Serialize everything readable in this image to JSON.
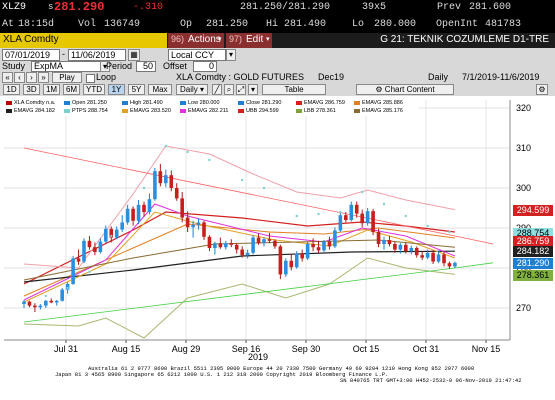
{
  "quote": {
    "ticker": "XLZ9",
    "last_prefix": "s",
    "last": "281.290",
    "change": "-.310",
    "bid_ask": "281.250/281.290",
    "size": "39x5",
    "prev_label": "Prev",
    "prev": "281.600",
    "at_label": "At",
    "time": "18:15d",
    "vol_label": "Vol",
    "volume": "136749",
    "op_label": "Op",
    "open": "281.250",
    "hi_label": "Hi",
    "high": "281.490",
    "lo_label": "Lo",
    "low": "280.000",
    "openint_label": "OpenInt",
    "openint": "481783"
  },
  "toolbar": {
    "security": "XLA Comdty",
    "actions_num": "96)",
    "actions_label": "Actions",
    "edit_num": "97)",
    "edit_label": "Edit",
    "title": "G 21: TEKNIK COZUMLEME D1-TRE"
  },
  "controls": {
    "date_from": "07/01/2019",
    "date_to": "11/06/2019",
    "currency": "Local CCY",
    "study_label": "Study",
    "study_value": "ExpMA",
    "period_label": "Period",
    "period_value": "50",
    "offset_label": "Offset",
    "offset_value": "0",
    "play_label": "Play",
    "loop_label": "Loop",
    "instrument": "XLA Comdty : GOLD FUTURES",
    "contract": "Dec19",
    "frequency": "Daily",
    "range_text": "7/1/2019-11/6/2019"
  },
  "tabs": [
    {
      "label": "1D",
      "selected": false
    },
    {
      "label": "3D",
      "selected": false
    },
    {
      "label": "1M",
      "selected": false
    },
    {
      "label": "6M",
      "selected": false
    },
    {
      "label": "YTD",
      "selected": false
    },
    {
      "label": "1Y",
      "selected": true
    },
    {
      "label": "5Y",
      "selected": false
    },
    {
      "label": "Max",
      "selected": false
    },
    {
      "label": "Daily",
      "selected": false
    }
  ],
  "table_label": "Table",
  "chart_content_label": "Chart Content",
  "legend": [
    {
      "label": "XLA Comdty",
      "value": "n.a.",
      "color": "#c00000"
    },
    {
      "label": "Open",
      "value": "281.250",
      "color": "#1f7fd0"
    },
    {
      "label": "High",
      "value": "281.490",
      "color": "#1f7fd0"
    },
    {
      "label": "Low",
      "value": "280.000",
      "color": "#1f7fd0"
    },
    {
      "label": "Close",
      "value": "281.290",
      "color": "#1f7fd0"
    },
    {
      "label": "EMAVG",
      "value": "286.759",
      "color": "#d42020"
    },
    {
      "label": "EMAVG",
      "value": "285.886",
      "color": "#e08020"
    },
    {
      "label": "EMAVG",
      "value": "284.182",
      "color": "#202020"
    },
    {
      "label": "PTPS",
      "value": "288.754",
      "color": "#7fcfcf"
    },
    {
      "label": "EMAVG",
      "value": "283.520",
      "color": "#e0a020"
    },
    {
      "label": "EMAVG",
      "value": "282.211",
      "color": "#e030e0"
    },
    {
      "label": "UBB",
      "value": "294.599",
      "color": "#d42020"
    },
    {
      "label": "LBB",
      "value": "278.361",
      "color": "#80a040"
    },
    {
      "label": "EMAVG",
      "value": "285.176",
      "color": "#8a6a30"
    }
  ],
  "price_labels": [
    {
      "value": "294.599",
      "bg": "#d42020",
      "fg": "#ffffff"
    },
    {
      "value": "288.754",
      "bg": "#8fdfe0",
      "fg": "#000000"
    },
    {
      "value": "286.759",
      "bg": "#d42020",
      "fg": "#ffffff"
    },
    {
      "value": "284.182",
      "bg": "#202020",
      "fg": "#ffffff"
    },
    {
      "value": "281.290",
      "bg": "#1f7fd0",
      "fg": "#ffffff"
    },
    {
      "value": "278.361",
      "bg": "#80b040",
      "fg": "#000000"
    }
  ],
  "footer": {
    "line1": "Australia 61 2 9777 8600 Brazil 5511 2395 9000 Europe 44 20 7330 7500 Germany 49 69 9204 1210 Hong Kong 852 2977 6000",
    "line2": "Japan 81 3 4565 8900          Singapore 65 6212 1000          U.S. 1 212 318 2000          Copyright 2019 Bloomberg Finance L.P.",
    "line3": "SN 840765 TRT  GMT+3:00 H452-2532-0 06-Nov-2019 21:47:42"
  },
  "chart_data": {
    "type": "line",
    "x_labels": [
      "Jul 31",
      "Aug 15",
      "Aug 29",
      "Sep 16",
      "Sep 30",
      "Oct 15",
      "Oct 31",
      "Nov 15"
    ],
    "x_sublabel": "2019",
    "y_ticks": [
      270,
      280,
      290,
      300,
      310,
      320
    ],
    "ylim": [
      262,
      322
    ],
    "candles": [
      [
        271.0,
        272.0,
        270.0,
        271.6
      ],
      [
        271.6,
        271.8,
        270.2,
        270.6
      ],
      [
        270.6,
        271.2,
        269.0,
        270.2
      ],
      [
        270.2,
        271.0,
        269.6,
        270.6
      ],
      [
        270.6,
        272.0,
        270.0,
        271.8
      ],
      [
        271.8,
        272.4,
        271.2,
        271.4
      ],
      [
        271.4,
        272.0,
        270.6,
        271.8
      ],
      [
        271.8,
        275.0,
        271.6,
        274.6
      ],
      [
        274.6,
        276.4,
        273.6,
        276.0
      ],
      [
        276.0,
        283.0,
        275.8,
        282.4
      ],
      [
        282.4,
        284.6,
        280.8,
        281.6
      ],
      [
        281.6,
        287.4,
        281.2,
        286.8
      ],
      [
        286.8,
        288.0,
        284.6,
        285.2
      ],
      [
        285.2,
        286.4,
        283.2,
        284.0
      ],
      [
        284.0,
        287.4,
        283.6,
        286.6
      ],
      [
        286.6,
        290.6,
        286.2,
        289.8
      ],
      [
        289.8,
        290.4,
        286.4,
        287.6
      ],
      [
        287.6,
        290.4,
        287.2,
        289.6
      ],
      [
        289.6,
        293.2,
        289.0,
        291.4
      ],
      [
        291.4,
        295.8,
        290.8,
        294.8
      ],
      [
        294.8,
        295.4,
        290.6,
        291.8
      ],
      [
        291.8,
        297.0,
        291.0,
        295.8
      ],
      [
        295.8,
        296.6,
        292.8,
        294.0
      ],
      [
        294.0,
        298.6,
        293.4,
        297.2
      ],
      [
        297.2,
        305.0,
        296.8,
        304.2
      ],
      [
        304.2,
        306.0,
        300.4,
        301.2
      ],
      [
        301.2,
        304.6,
        300.2,
        303.2
      ],
      [
        303.2,
        304.4,
        299.2,
        300.0
      ],
      [
        300.0,
        301.2,
        296.8,
        297.4
      ],
      [
        297.4,
        299.0,
        291.4,
        292.6
      ],
      [
        292.6,
        294.2,
        289.0,
        290.2
      ],
      [
        290.2,
        291.8,
        287.6,
        290.8
      ],
      [
        290.8,
        292.4,
        289.6,
        291.4
      ],
      [
        291.4,
        291.8,
        287.0,
        287.8
      ],
      [
        287.8,
        288.2,
        284.2,
        285.0
      ],
      [
        285.0,
        286.6,
        283.4,
        286.2
      ],
      [
        286.2,
        287.6,
        284.8,
        285.2
      ],
      [
        285.2,
        286.8,
        284.6,
        286.2
      ],
      [
        286.2,
        287.2,
        285.2,
        285.8
      ],
      [
        285.8,
        286.2,
        283.6,
        284.6
      ],
      [
        284.6,
        285.4,
        282.6,
        283.2
      ],
      [
        283.2,
        284.6,
        282.4,
        283.8
      ],
      [
        283.8,
        288.2,
        283.4,
        287.6
      ],
      [
        287.6,
        288.6,
        285.8,
        286.2
      ],
      [
        286.2,
        287.6,
        285.4,
        287.2
      ],
      [
        287.2,
        288.8,
        286.2,
        286.8
      ],
      [
        286.8,
        287.2,
        284.8,
        285.4
      ],
      [
        285.4,
        285.8,
        277.2,
        278.4
      ],
      [
        278.4,
        282.4,
        277.8,
        281.8
      ],
      [
        281.8,
        283.4,
        279.4,
        280.2
      ],
      [
        280.2,
        284.2,
        279.8,
        283.6
      ],
      [
        283.6,
        284.6,
        281.6,
        282.4
      ],
      [
        282.4,
        286.6,
        282.0,
        286.0
      ],
      [
        286.0,
        287.4,
        284.2,
        285.2
      ],
      [
        285.2,
        286.8,
        283.8,
        284.4
      ],
      [
        284.4,
        287.0,
        284.0,
        286.6
      ],
      [
        286.6,
        287.8,
        284.6,
        285.4
      ],
      [
        285.4,
        290.2,
        285.0,
        289.4
      ],
      [
        289.4,
        294.2,
        289.0,
        293.2
      ],
      [
        293.2,
        294.0,
        291.4,
        292.0
      ],
      [
        292.0,
        296.6,
        291.6,
        295.8
      ],
      [
        295.8,
        296.6,
        292.6,
        293.6
      ],
      [
        293.6,
        294.6,
        290.2,
        291.2
      ],
      [
        291.2,
        295.0,
        290.6,
        294.2
      ],
      [
        294.2,
        294.8,
        288.2,
        289.0
      ],
      [
        289.0,
        289.8,
        285.2,
        286.0
      ],
      [
        286.0,
        287.8,
        284.6,
        287.0
      ],
      [
        287.0,
        288.0,
        285.4,
        286.0
      ],
      [
        286.0,
        286.6,
        283.8,
        284.6
      ],
      [
        284.6,
        286.2,
        283.6,
        285.8
      ],
      [
        285.8,
        286.4,
        283.6,
        284.2
      ],
      [
        284.2,
        285.6,
        283.4,
        285.0
      ],
      [
        285.0,
        285.4,
        282.6,
        283.2
      ],
      [
        283.2,
        284.2,
        282.0,
        282.6
      ],
      [
        282.6,
        284.6,
        282.2,
        283.8
      ],
      [
        283.8,
        284.4,
        281.0,
        281.6
      ],
      [
        281.6,
        284.2,
        281.2,
        283.4
      ],
      [
        283.4,
        284.2,
        280.4,
        281.2
      ],
      [
        281.2,
        281.6,
        279.8,
        280.4
      ],
      [
        280.4,
        281.6,
        280.0,
        281.3
      ]
    ],
    "overlays": [
      {
        "color": "#d42020",
        "width": 1.2,
        "values": [
          [
            0,
            276.0
          ],
          [
            20,
            289.5
          ],
          [
            26,
            294.0
          ],
          [
            40,
            292.5
          ],
          [
            52,
            290.5
          ],
          [
            62,
            291.5
          ],
          [
            70,
            290.5
          ],
          [
            79,
            289.0
          ]
        ]
      },
      {
        "color": "#e08020",
        "width": 1.0,
        "values": [
          [
            0,
            273.0
          ],
          [
            20,
            285.0
          ],
          [
            30,
            291.0
          ],
          [
            45,
            289.0
          ],
          [
            55,
            288.5
          ],
          [
            65,
            290.0
          ],
          [
            79,
            287.5
          ]
        ]
      },
      {
        "color": "#202020",
        "width": 1.2,
        "values": [
          [
            0,
            276.5
          ],
          [
            20,
            279.5
          ],
          [
            40,
            283.0
          ],
          [
            60,
            284.0
          ],
          [
            79,
            284.2
          ]
        ]
      },
      {
        "color": "#e030e0",
        "width": 1.0,
        "values": [
          [
            0,
            272.0
          ],
          [
            15,
            282.0
          ],
          [
            24,
            296.0
          ],
          [
            30,
            293.0
          ],
          [
            45,
            288.0
          ],
          [
            55,
            286.5
          ],
          [
            62,
            290.0
          ],
          [
            70,
            288.0
          ],
          [
            79,
            283.0
          ]
        ]
      },
      {
        "color": "#e0a020",
        "width": 1.0,
        "values": [
          [
            0,
            271.5
          ],
          [
            15,
            281.0
          ],
          [
            24,
            294.0
          ],
          [
            32,
            291.0
          ],
          [
            46,
            287.0
          ],
          [
            56,
            285.5
          ],
          [
            63,
            289.5
          ],
          [
            71,
            286.5
          ],
          [
            79,
            282.5
          ]
        ]
      },
      {
        "color": "#8a6a30",
        "width": 1.0,
        "values": [
          [
            0,
            277.0
          ],
          [
            20,
            282.5
          ],
          [
            35,
            286.0
          ],
          [
            50,
            286.5
          ],
          [
            65,
            287.0
          ],
          [
            79,
            285.2
          ]
        ]
      },
      {
        "color": "#f0a0a8",
        "width": 1.0,
        "values": [
          [
            0,
            281.0
          ],
          [
            10,
            280.0
          ],
          [
            20,
            298.5
          ],
          [
            26,
            310.5
          ],
          [
            34,
            308.5
          ],
          [
            42,
            303.5
          ],
          [
            50,
            299.0
          ],
          [
            58,
            297.5
          ],
          [
            63,
            299.5
          ],
          [
            70,
            297.0
          ],
          [
            79,
            294.6
          ]
        ]
      },
      {
        "color": "#a8b870",
        "width": 1.0,
        "values": [
          [
            0,
            266.0
          ],
          [
            10,
            265.5
          ],
          [
            15,
            267.5
          ],
          [
            22,
            262.5
          ],
          [
            30,
            272.5
          ],
          [
            40,
            276.0
          ],
          [
            48,
            272.5
          ],
          [
            56,
            276.0
          ],
          [
            63,
            282.5
          ],
          [
            70,
            280.0
          ],
          [
            79,
            278.4
          ]
        ]
      },
      {
        "color": "#ff6060",
        "width": 0.8,
        "values": [
          [
            0,
            310.0
          ],
          [
            79,
            288.0
          ],
          [
            86,
            286.0
          ]
        ]
      },
      {
        "color": "#40d040",
        "width": 0.8,
        "values": [
          [
            0,
            266.5
          ],
          [
            79,
            280.0
          ],
          [
            86,
            281.3
          ]
        ]
      }
    ],
    "sar_dots": [
      [
        4,
        273.0
      ],
      [
        8,
        275.0
      ],
      [
        12,
        279.0
      ],
      [
        16,
        288.0
      ],
      [
        22,
        300.0
      ],
      [
        26,
        310.5
      ],
      [
        30,
        309.0
      ],
      [
        34,
        307.0
      ],
      [
        40,
        302.0
      ],
      [
        44,
        300.0
      ],
      [
        50,
        293.0
      ],
      [
        54,
        293.5
      ],
      [
        58,
        294.0
      ],
      [
        62,
        299.0
      ],
      [
        66,
        296.0
      ],
      [
        70,
        293.0
      ],
      [
        74,
        290.5
      ],
      [
        78,
        289.0
      ]
    ]
  }
}
